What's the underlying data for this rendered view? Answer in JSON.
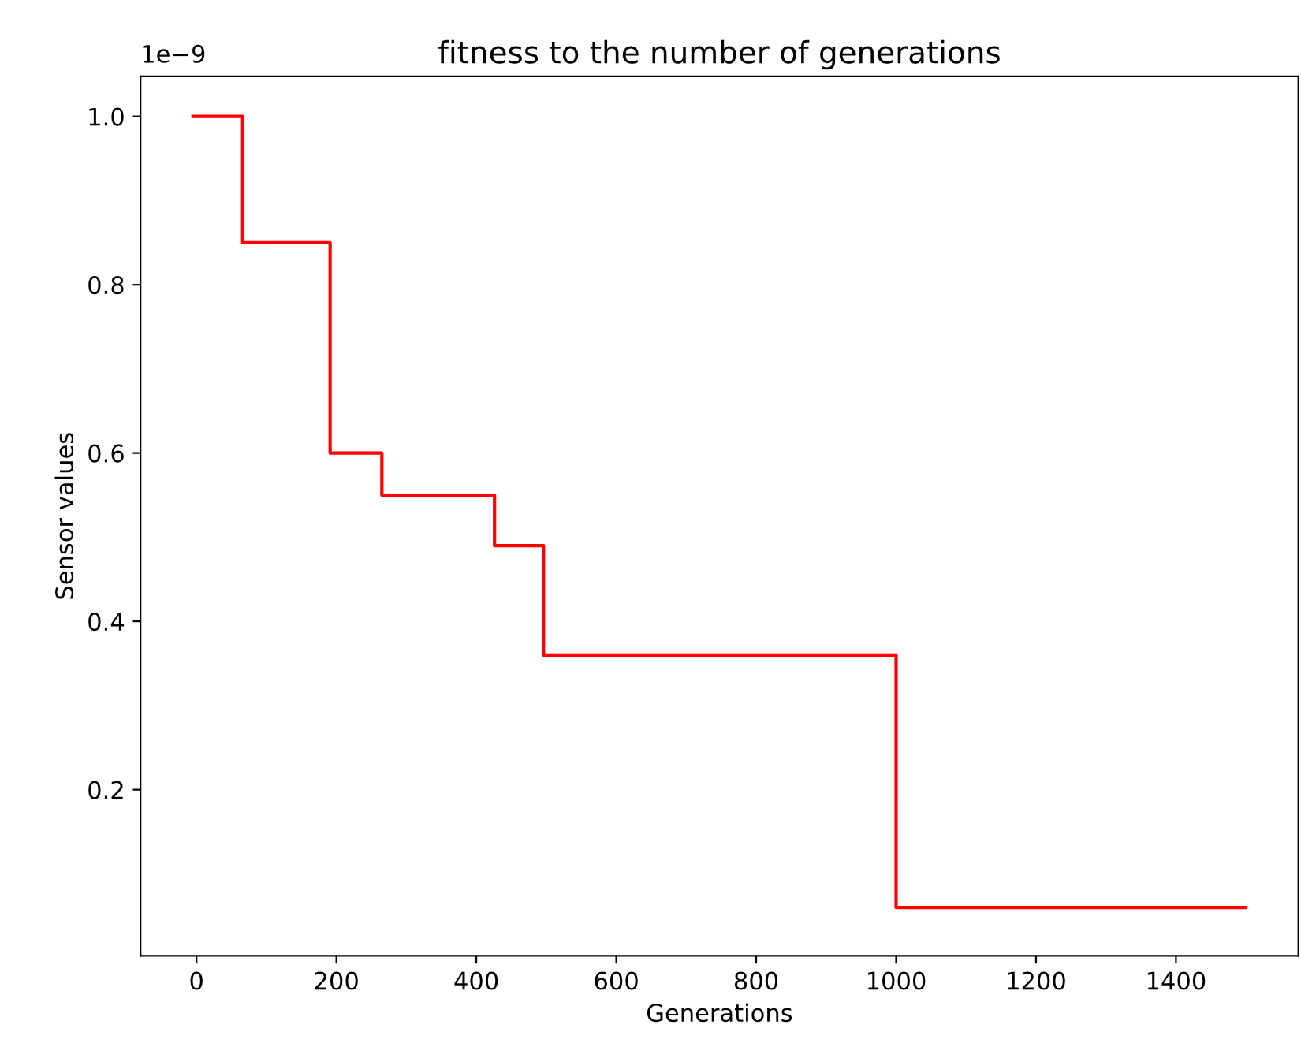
{
  "chart_data": {
    "type": "step",
    "title": "fitness to the number of generations",
    "xlabel": "Generations",
    "ylabel": "Sensor values",
    "annotations": [
      "1e−9"
    ],
    "x": [
      -5,
      66,
      191,
      265,
      426,
      496,
      1000,
      1500
    ],
    "series": [
      {
        "color": "#ff0000",
        "values": [
          1.0,
          0.85,
          0.6,
          0.55,
          0.49,
          0.36,
          0.06,
          0.06
        ]
      }
    ],
    "xlim": [
      -80,
      1575
    ],
    "xticks": [
      0,
      200,
      400,
      600,
      800,
      1000,
      1200,
      1400
    ],
    "ylim": [
      0.0025,
      1.0475
    ],
    "yticks": [
      {
        "value": 0.2,
        "label": "0.2"
      },
      {
        "value": 0.4,
        "label": "0.4"
      },
      {
        "value": 0.6,
        "label": "0.6"
      },
      {
        "value": 0.8,
        "label": "0.8"
      },
      {
        "value": 1.0,
        "label": "1.0"
      }
    ],
    "grid": false,
    "legend": false
  }
}
